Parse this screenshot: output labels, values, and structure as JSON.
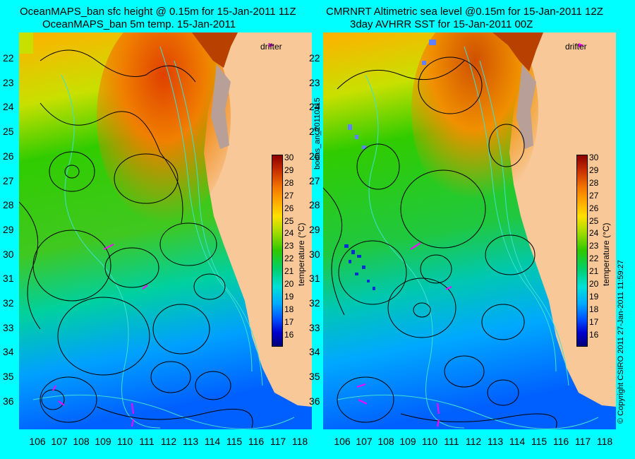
{
  "left_panel": {
    "title_line1": "OceanMAPS_ban sfc height @ 0.15m for 15-Jan-2011 11Z",
    "title_line2": "OceanMAPS_ban 5m temp. 15-Jan-2011",
    "drifter_label": "drifter"
  },
  "right_panel": {
    "title_line1": "CMRNRT Altimetric sea level  @0.15m  for 15-Jan-2011 12Z",
    "title_line2": "3day AVHRR SST for 15-Jan-2011 00Z",
    "drifter_label": "drifter"
  },
  "side_label": "bodas_an_20110115",
  "copyright": "© Copyright CSIRO 2011   27-Jan-2011 11:59:27",
  "axes": {
    "y_ticks": [
      "22",
      "23",
      "24",
      "25",
      "26",
      "27",
      "28",
      "29",
      "30",
      "31",
      "32",
      "33",
      "34",
      "35",
      "36"
    ],
    "x_ticks": [
      "106",
      "107",
      "108",
      "109",
      "110",
      "111",
      "112",
      "113",
      "114",
      "115",
      "116",
      "117",
      "118"
    ]
  },
  "colorbar": {
    "label": "temperature (°C)",
    "ticks": [
      "30",
      "29",
      "28",
      "27",
      "26",
      "25",
      "24",
      "23",
      "22",
      "21",
      "20",
      "19",
      "18",
      "17",
      "16"
    ],
    "range": [
      15.5,
      30.5
    ]
  },
  "colors": {
    "background": "#00ffff",
    "land": "#f8c898",
    "drifter": "#ff00ff",
    "contour": "#000000",
    "isobath": "#40e0d0"
  }
}
